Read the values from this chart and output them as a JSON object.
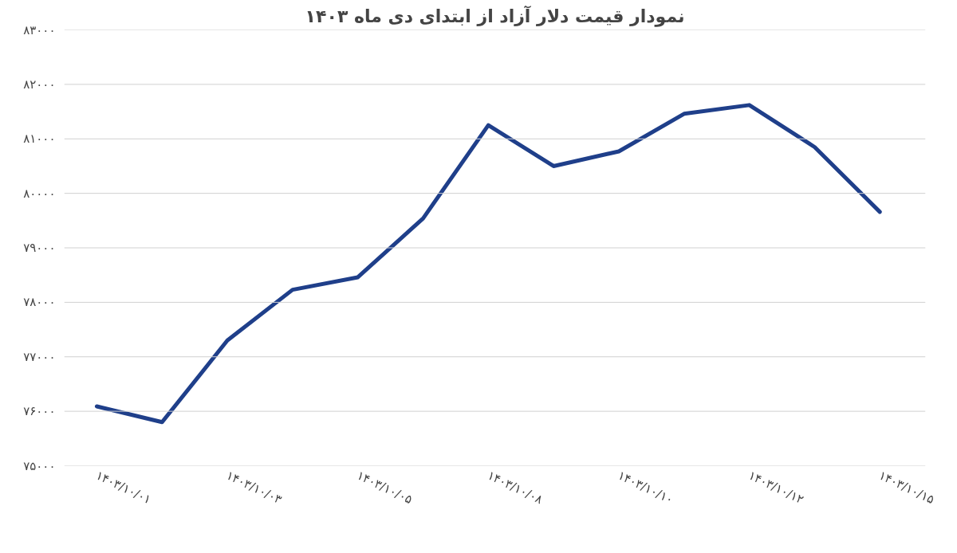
{
  "chart_data": {
    "type": "line",
    "title": "نمودار قیمت دلار آزاد از ابتدای دی ماه ۱۴۰۳",
    "categories": [
      "۱۴۰۳/۱۰/۰۱",
      null,
      "۱۴۰۳/۱۰/۰۳",
      null,
      "۱۴۰۳/۱۰/۰۵",
      null,
      "۱۴۰۳/۱۰/۰۸",
      null,
      "۱۴۰۳/۱۰/۱۰",
      null,
      "۱۴۰۳/۱۰/۱۲",
      null,
      "۱۴۰۳/۱۰/۱۵"
    ],
    "series": [
      {
        "color": "#1f3f8a",
        "values": [
          76090,
          75800,
          77300,
          78230,
          78460,
          79540,
          81250,
          80500,
          80770,
          81460,
          81620,
          80850,
          79660
        ]
      }
    ],
    "ylim": [
      75000,
      83000
    ],
    "yticks": [
      {
        "value": 75000,
        "label": "۷۵۰۰۰"
      },
      {
        "value": 76000,
        "label": "۷۶۰۰۰"
      },
      {
        "value": 77000,
        "label": "۷۷۰۰۰"
      },
      {
        "value": 78000,
        "label": "۷۸۰۰۰"
      },
      {
        "value": 79000,
        "label": "۷۹۰۰۰"
      },
      {
        "value": 80000,
        "label": "۸۰۰۰۰"
      },
      {
        "value": 81000,
        "label": "۸۱۰۰۰"
      },
      {
        "value": 82000,
        "label": "۸۲۰۰۰"
      },
      {
        "value": 83000,
        "label": "۸۳۰۰۰"
      }
    ],
    "grid": "y",
    "marker": "none",
    "line_style": "solid"
  }
}
